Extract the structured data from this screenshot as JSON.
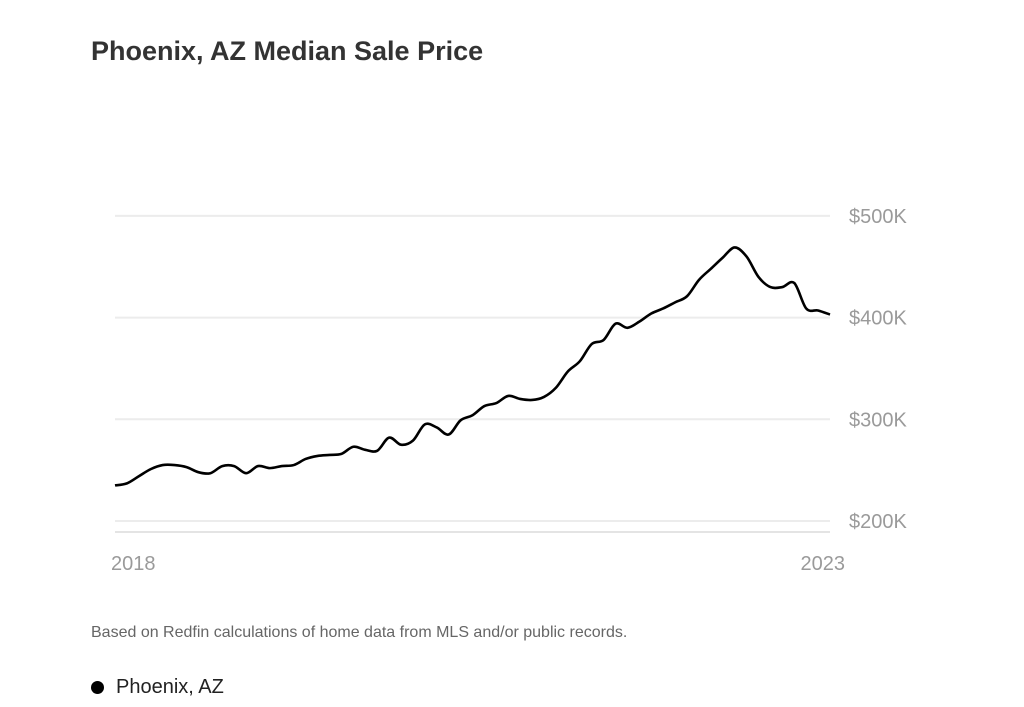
{
  "chart_data": {
    "type": "line",
    "title": "Phoenix, AZ Median Sale Price",
    "xlabel": "",
    "ylabel": "",
    "x_tick_labels": [
      "2018",
      "2023"
    ],
    "y_tick_labels": [
      "$200K",
      "$300K",
      "$400K",
      "$500K"
    ],
    "y_ticks": [
      200,
      300,
      400,
      500
    ],
    "ylim": [
      190,
      500
    ],
    "x_range": [
      "2018-01",
      "2023-01"
    ],
    "grid": true,
    "legend_placement": "bottom-left",
    "line_color": "#000000",
    "series": [
      {
        "name": "Phoenix, AZ",
        "unit": "thousand USD",
        "frequency": "monthly",
        "values": [
          235,
          237,
          244,
          251,
          255,
          255,
          253,
          248,
          247,
          254,
          254,
          247,
          254,
          252,
          254,
          255,
          261,
          264,
          265,
          266,
          273,
          270,
          269,
          282,
          275,
          279,
          295,
          292,
          285,
          299,
          304,
          313,
          316,
          323,
          320,
          319,
          322,
          331,
          347,
          357,
          374,
          378,
          394,
          390,
          396,
          404,
          409,
          415,
          421,
          437,
          448,
          459,
          469,
          460,
          440,
          430,
          430,
          434,
          409,
          407,
          403
        ]
      }
    ]
  },
  "footnote": "Based on Redfin calculations of home data from MLS and/or public records.",
  "legend": {
    "label": "Phoenix, AZ"
  }
}
